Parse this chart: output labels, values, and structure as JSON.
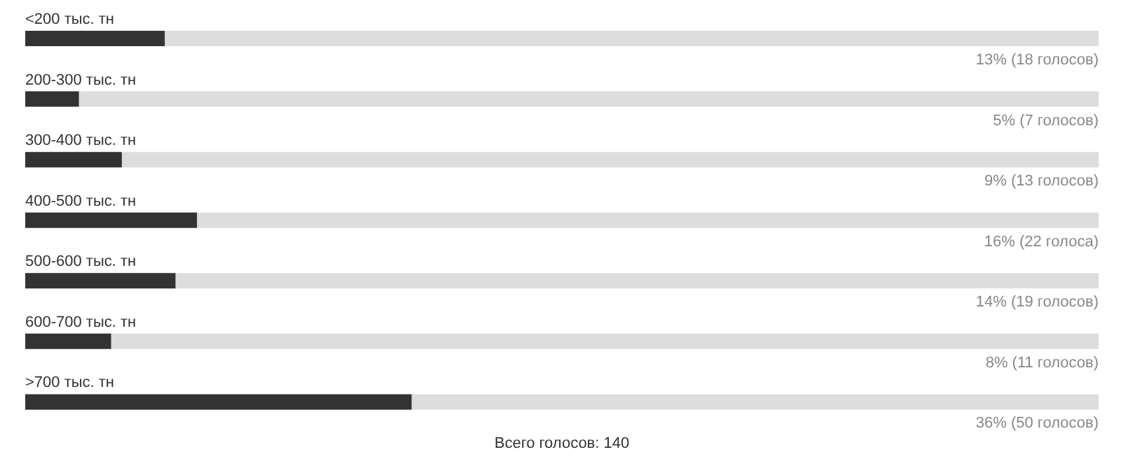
{
  "chart_data": {
    "type": "bar",
    "orientation": "horizontal",
    "categories": [
      "<200 тыс. тн",
      "200-300 тыс. тн",
      "300-400 тыс. тн",
      "400-500 тыс. тн",
      "500-600 тыс. тн",
      "600-700 тыс. тн",
      ">700 тыс. тн"
    ],
    "values": [
      13,
      5,
      9,
      16,
      14,
      8,
      36
    ],
    "value_labels": [
      "13% (18 голосов)",
      "5% (7 голосов)",
      "9% (13 голосов)",
      "16% (22 голоса)",
      "14% (19 голосов)",
      "8% (11 голосов)",
      "36% (50 голосов)"
    ],
    "color": "#333333",
    "xlim": [
      0,
      100
    ],
    "annotations": [
      "Всего голосов: 140"
    ]
  }
}
